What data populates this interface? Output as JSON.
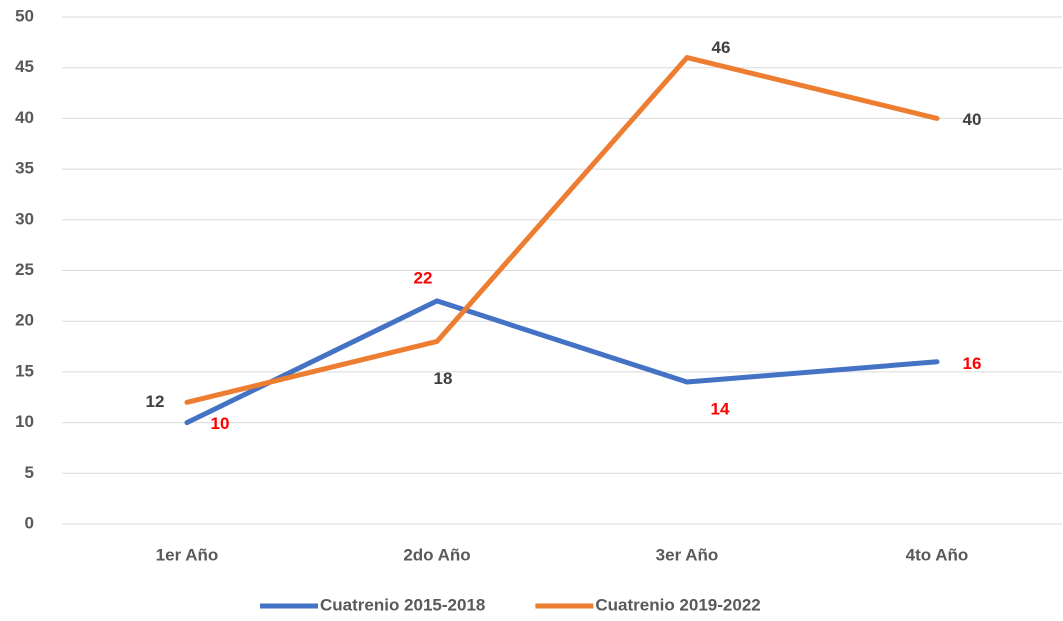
{
  "chart_data": {
    "type": "line",
    "categories": [
      "1er Año",
      "2do Año",
      "3er Año",
      "4to Año"
    ],
    "series": [
      {
        "name": "Cuatrenio 2015-2018",
        "color": "#4472c4",
        "label_color": "#ff0000",
        "values": [
          10,
          22,
          14,
          16
        ]
      },
      {
        "name": "Cuatrenio 2019-2022",
        "color": "#ed7d31",
        "label_color": "#404040",
        "values": [
          12,
          18,
          46,
          40
        ]
      }
    ],
    "ylim": [
      0,
      50
    ],
    "yticks": [
      0,
      5,
      10,
      15,
      20,
      25,
      30,
      35,
      40,
      45,
      50
    ],
    "grid": true,
    "legend": "bottom"
  }
}
